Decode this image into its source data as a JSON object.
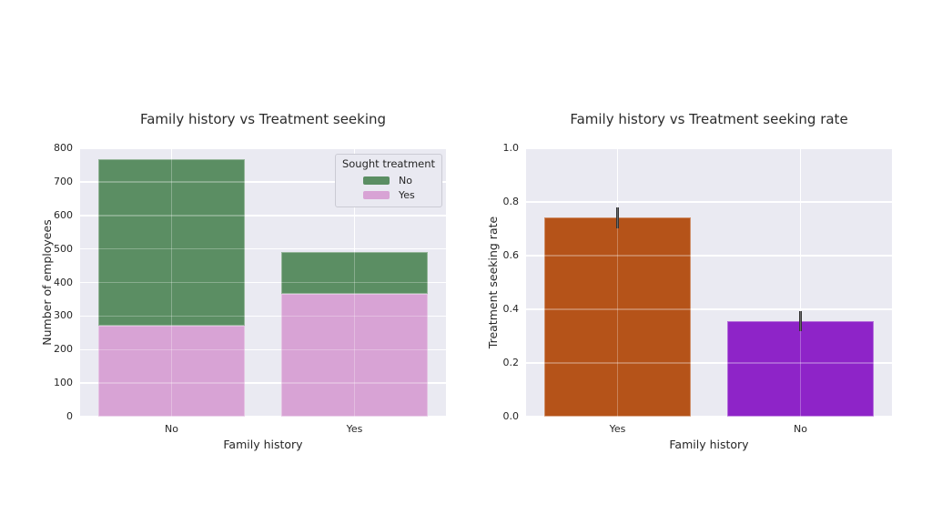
{
  "figure": {
    "background": "#ffffff",
    "axes_background": "#eaeaf2",
    "grid_color": "#ffffff",
    "text_color": "#262626",
    "error_bar_color": "#333333"
  },
  "chart_data": [
    {
      "type": "bar",
      "subtype": "stacked",
      "title": "Family history vs Treatment seeking",
      "xlabel": "Family history",
      "ylabel": "Number of employees",
      "categories": [
        "No",
        "Yes"
      ],
      "series": [
        {
          "name": "Yes",
          "color": "#d8a3d5",
          "values": [
            272,
            365
          ]
        },
        {
          "name": "No",
          "color": "#5b8e63",
          "values": [
            495,
            127
          ]
        }
      ],
      "ylim": [
        0,
        800
      ],
      "yticks": [
        0,
        100,
        200,
        300,
        400,
        500,
        600,
        700,
        800
      ],
      "ytick_labels": [
        "0",
        "100",
        "200",
        "300",
        "400",
        "500",
        "600",
        "700",
        "800"
      ],
      "grid": true,
      "legend": {
        "title": "Sought treatment",
        "position": "upper right",
        "entries": [
          {
            "label": "No",
            "color": "#5b8e63"
          },
          {
            "label": "Yes",
            "color": "#d8a3d5"
          }
        ]
      }
    },
    {
      "type": "bar",
      "subtype": "simple",
      "title": "Family history vs Treatment seeking rate",
      "xlabel": "Family history",
      "ylabel": "Treatment seeking rate",
      "categories": [
        "Yes",
        "No"
      ],
      "values": [
        0.742,
        0.355
      ],
      "bar_colors": [
        "#b55319",
        "#8e24c8"
      ],
      "error_bars": [
        [
          0.703,
          0.781
        ],
        [
          0.318,
          0.392
        ]
      ],
      "ylim": [
        0,
        1.0
      ],
      "yticks": [
        0,
        0.2,
        0.4,
        0.6,
        0.8,
        1.0
      ],
      "ytick_labels": [
        "0.0",
        "0.2",
        "0.4",
        "0.6",
        "0.8",
        "1.0"
      ],
      "grid": true
    }
  ]
}
